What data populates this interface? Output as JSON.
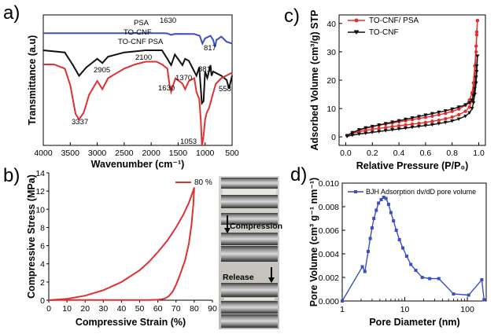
{
  "panel_labels": [
    "a)",
    "b)",
    "c)",
    "d)"
  ],
  "chart_data": [
    {
      "id": "a",
      "type": "line",
      "title": "",
      "xlabel": "Wavenumber (cm⁻¹)",
      "ylabel": "Transmittance (a.u)",
      "xlim": [
        4000,
        500
      ],
      "xticks": [
        "4000",
        "3500",
        "3000",
        "2500",
        "2000",
        "1500",
        "1000",
        "500"
      ],
      "colors": {
        "PSA": "#3b4fc4",
        "TO-CNF": "#111111",
        "TO-CNF PSA": "#e03030"
      },
      "series": [
        {
          "name": "PSA",
          "x": [
            4000,
            1750,
            1700,
            1630,
            1560,
            1200,
            1100,
            1050,
            1000,
            900,
            850,
            817,
            790,
            700,
            600,
            500
          ],
          "y": [
            94,
            94,
            93.8,
            93,
            93.6,
            93.5,
            92.5,
            88,
            91,
            92.5,
            90,
            86,
            90,
            92,
            89,
            88
          ]
        },
        {
          "name": "TO-CNF",
          "x": [
            4000,
            3600,
            3450,
            3337,
            3200,
            3000,
            2905,
            2800,
            2500,
            2100,
            1800,
            1700,
            1630,
            1560,
            1420,
            1370,
            1300,
            1160,
            1110,
            1060,
            1030,
            1000,
            960,
            900,
            881,
            850,
            700,
            600,
            558,
            500
          ],
          "y": [
            90,
            89,
            83,
            78,
            82,
            86,
            84,
            87,
            89,
            90,
            90,
            86,
            83,
            88,
            83,
            86,
            85,
            78,
            82,
            65,
            66,
            80,
            77,
            83,
            78,
            80,
            78,
            76,
            72,
            78
          ]
        },
        {
          "name": "TO-CNF PSA",
          "x": [
            4000,
            3800,
            3600,
            3500,
            3400,
            3337,
            3250,
            3150,
            3000,
            2905,
            2800,
            2500,
            2300,
            2100,
            1900,
            1800,
            1700,
            1660,
            1630,
            1600,
            1550,
            1450,
            1420,
            1370,
            1300,
            1200,
            1160,
            1110,
            1080,
            1060,
            1053,
            1030,
            1000,
            970,
            930,
            900,
            860,
            800,
            700,
            600,
            500
          ],
          "y": [
            80,
            80,
            77,
            65,
            44,
            40,
            45,
            58,
            68,
            62,
            70,
            77,
            80,
            82,
            82,
            80,
            77,
            65,
            60,
            64,
            70,
            67,
            66,
            62,
            68,
            70,
            60,
            55,
            40,
            20,
            15,
            28,
            40,
            45,
            48,
            52,
            58,
            66,
            70,
            72,
            74
          ]
        }
      ],
      "annotations": [
        {
          "text": "PSA"
        },
        {
          "text": "TO-CNF"
        },
        {
          "text": "TO-CNF PSA"
        },
        {
          "text": "1630"
        },
        {
          "text": "817"
        },
        {
          "text": "2905"
        },
        {
          "text": "2100"
        },
        {
          "text": "1370"
        },
        {
          "text": "881"
        },
        {
          "text": "558"
        },
        {
          "text": "1630"
        },
        {
          "text": "3337"
        },
        {
          "text": "1053"
        }
      ]
    },
    {
      "id": "b",
      "type": "line",
      "title": "",
      "xlabel": "Compressive Strain (%)",
      "ylabel": "Compressive Stress (MPa)",
      "xlim": [
        0,
        90
      ],
      "ylim": [
        0,
        14
      ],
      "xticks": [
        "0",
        "10",
        "20",
        "30",
        "40",
        "50",
        "60",
        "70",
        "80",
        "90"
      ],
      "yticks": [
        "0",
        "2",
        "4",
        "6",
        "8",
        "10",
        "12",
        "14"
      ],
      "color": "#e03030",
      "series": [
        {
          "name": "80 %",
          "x": [
            0,
            10,
            20,
            30,
            40,
            50,
            55,
            60,
            65,
            70,
            74,
            77,
            79,
            80,
            79.5,
            78.5,
            77,
            75,
            72,
            70,
            68,
            66,
            64,
            62,
            60,
            55,
            50,
            45,
            40,
            35,
            30,
            25,
            20,
            15,
            10,
            5,
            0
          ],
          "y": [
            0,
            0.15,
            0.5,
            1.1,
            2.0,
            3.3,
            4.2,
            5.3,
            6.5,
            8.0,
            9.4,
            10.7,
            11.8,
            12.4,
            10.5,
            8.3,
            6.2,
            4.4,
            2.7,
            1.7,
            0.9,
            0.45,
            0.2,
            0.1,
            0.05,
            0.02,
            0.02,
            0.02,
            0.02,
            0.02,
            0.02,
            0.02,
            0.02,
            0.02,
            0.02,
            0.02,
            0
          ]
        }
      ]
    },
    {
      "id": "c",
      "type": "line",
      "title": "",
      "xlabel": "Relative Pressure (P/P₀)",
      "ylabel": "Adsorbed Volume (cm³/g) STP",
      "xlim": [
        -0.05,
        1.05
      ],
      "ylim": [
        -3,
        43
      ],
      "xticks": [
        "0.0",
        "0.2",
        "0.4",
        "0.6",
        "0.8",
        "1.0"
      ],
      "yticks": [
        "0",
        "10",
        "20",
        "30",
        "40"
      ],
      "series": [
        {
          "name": "TO-CNF/ PSA",
          "color": "#e03030",
          "x": [
            0.01,
            0.05,
            0.1,
            0.15,
            0.2,
            0.25,
            0.3,
            0.35,
            0.4,
            0.45,
            0.5,
            0.55,
            0.6,
            0.65,
            0.7,
            0.75,
            0.8,
            0.85,
            0.9,
            0.93,
            0.95,
            0.96,
            0.97,
            0.98,
            0.985,
            0.99,
            0.99,
            0.985,
            0.98,
            0.97,
            0.96,
            0.95,
            0.93,
            0.9,
            0.85,
            0.8,
            0.75,
            0.7,
            0.65,
            0.6,
            0.55,
            0.5,
            0.45,
            0.4,
            0.35,
            0.3,
            0.25,
            0.2,
            0.15,
            0.1,
            0.05,
            0.01
          ],
          "y": [
            0.5,
            1.2,
            1.8,
            2.3,
            2.7,
            3.0,
            3.3,
            3.6,
            3.9,
            4.2,
            4.5,
            4.8,
            5.1,
            5.5,
            5.9,
            6.4,
            7.0,
            7.8,
            9.0,
            10.5,
            13,
            16,
            21,
            30,
            36,
            41,
            41,
            37,
            32,
            25,
            19,
            15.5,
            13,
            11.2,
            9.8,
            9.0,
            8.3,
            7.8,
            7.3,
            6.9,
            6.5,
            6.1,
            5.7,
            5.3,
            4.9,
            4.5,
            4.1,
            3.6,
            3.0,
            2.3,
            1.5,
            0.5
          ]
        },
        {
          "name": "TO-CNF",
          "color": "#111111",
          "x": [
            0.01,
            0.05,
            0.1,
            0.15,
            0.2,
            0.25,
            0.3,
            0.35,
            0.4,
            0.45,
            0.5,
            0.55,
            0.6,
            0.65,
            0.7,
            0.75,
            0.8,
            0.85,
            0.9,
            0.93,
            0.95,
            0.96,
            0.97,
            0.98,
            0.985,
            0.99,
            0.99,
            0.985,
            0.98,
            0.97,
            0.96,
            0.95,
            0.93,
            0.9,
            0.85,
            0.8,
            0.75,
            0.7,
            0.65,
            0.6,
            0.55,
            0.5,
            0.45,
            0.4,
            0.35,
            0.3,
            0.25,
            0.2,
            0.15,
            0.1,
            0.05,
            0.01
          ],
          "y": [
            0.2,
            0.6,
            1.0,
            1.3,
            1.6,
            1.9,
            2.2,
            2.5,
            2.8,
            3.1,
            3.4,
            3.7,
            4.0,
            4.3,
            4.7,
            5.1,
            5.6,
            6.3,
            7.3,
            8.5,
            10,
            12,
            15,
            19,
            23,
            28.5,
            28.5,
            25,
            21,
            17,
            14.5,
            13,
            12,
            11.3,
            10.5,
            9.8,
            9.2,
            8.7,
            8.2,
            7.7,
            7.2,
            6.7,
            6.2,
            5.7,
            5.2,
            4.7,
            4.2,
            3.7,
            3.2,
            2.5,
            1.5,
            0.4
          ]
        }
      ]
    },
    {
      "id": "d",
      "type": "line",
      "title": "",
      "xlabel": "Pore Diameter (nm)",
      "ylabel": "Pore Volume (cm³ g⁻¹ nm⁻¹)",
      "xscale": "log",
      "xlim": [
        1,
        200
      ],
      "ylim": [
        0,
        0.01
      ],
      "xticks": [
        "1",
        "10",
        "100"
      ],
      "yticks": [
        "0.000",
        "0.002",
        "0.004",
        "0.006",
        "0.008",
        "0.010"
      ],
      "series": [
        {
          "name": "BJH Adsorption dv/dD pore volume",
          "color": "#3b4fc4",
          "x": [
            1.0,
            2.1,
            2.3,
            2.6,
            2.8,
            3.0,
            3.2,
            3.5,
            3.8,
            4.2,
            4.6,
            5.0,
            5.5,
            6.0,
            6.6,
            7.3,
            8.2,
            9.3,
            10.7,
            12.5,
            15,
            19,
            25,
            35,
            60,
            105,
            170,
            185
          ],
          "y": [
            0.0,
            0.0029,
            0.0025,
            0.0042,
            0.0053,
            0.0062,
            0.007,
            0.0077,
            0.0083,
            0.0086,
            0.0088,
            0.0087,
            0.0082,
            0.0075,
            0.0068,
            0.006,
            0.0052,
            0.0045,
            0.0038,
            0.0031,
            0.0026,
            0.002,
            0.0019,
            0.0019,
            0.0006,
            0.0005,
            0.0018,
            0.0001
          ]
        }
      ]
    }
  ],
  "photo": {
    "labels": [
      "Compression",
      "Release"
    ]
  }
}
